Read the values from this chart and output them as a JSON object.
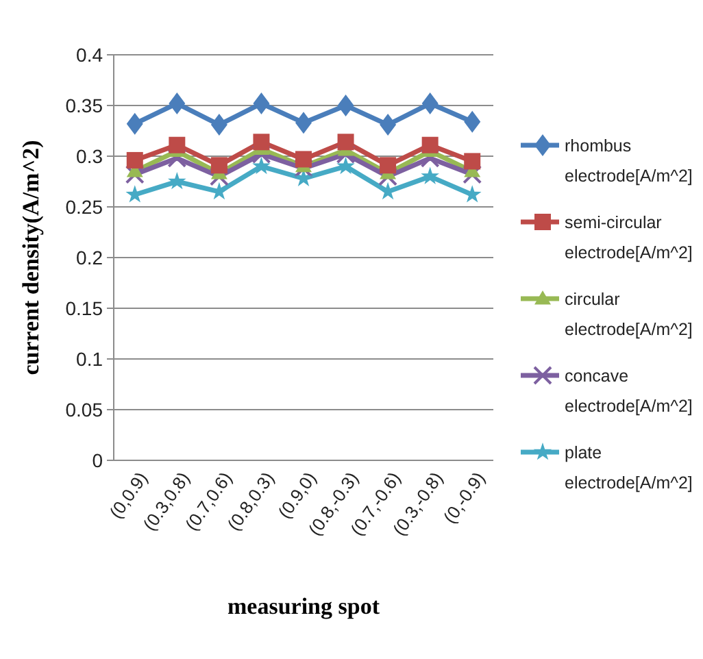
{
  "chart_data": {
    "type": "line",
    "xlabel": "measuring spot",
    "ylabel": "current density(A/m^2)",
    "categories": [
      "(0,0.9)",
      "(0.3,0.8)",
      "(0.7,0.6)",
      "(0.8,0.3)",
      "(0.9,0)",
      "(0.8,-0.3)",
      "(0.7,-0.6)",
      "(0.3,-0.8)",
      "(0,-0.9)"
    ],
    "ylim": [
      0,
      0.4
    ],
    "yticks": [
      0,
      0.05,
      0.1,
      0.15,
      0.2,
      0.25,
      0.3,
      0.35,
      0.4
    ],
    "grid": "y",
    "legend": "right",
    "series": [
      {
        "name": "rhombus electrode[A/m^2]",
        "color": "#4a7ebb",
        "marker": "diamond",
        "values": [
          0.332,
          0.352,
          0.331,
          0.352,
          0.333,
          0.35,
          0.331,
          0.352,
          0.334
        ]
      },
      {
        "name": "semi-circular electrode[A/m^2]",
        "color": "#be4b48",
        "marker": "square",
        "values": [
          0.296,
          0.311,
          0.291,
          0.314,
          0.297,
          0.314,
          0.291,
          0.311,
          0.295
        ]
      },
      {
        "name": "circular electrode[A/m^2]",
        "color": "#98b954",
        "marker": "triangle",
        "values": [
          0.285,
          0.305,
          0.283,
          0.307,
          0.29,
          0.306,
          0.283,
          0.305,
          0.285
        ]
      },
      {
        "name": "concave electrode[A/m^2]",
        "color": "#7d60a0",
        "marker": "cross",
        "values": [
          0.282,
          0.298,
          0.28,
          0.302,
          0.288,
          0.302,
          0.28,
          0.298,
          0.282
        ]
      },
      {
        "name": "plate electrode[A/m^2]",
        "color": "#46aac5",
        "marker": "star",
        "values": [
          0.262,
          0.275,
          0.265,
          0.29,
          0.278,
          0.29,
          0.265,
          0.28,
          0.262
        ]
      }
    ]
  }
}
